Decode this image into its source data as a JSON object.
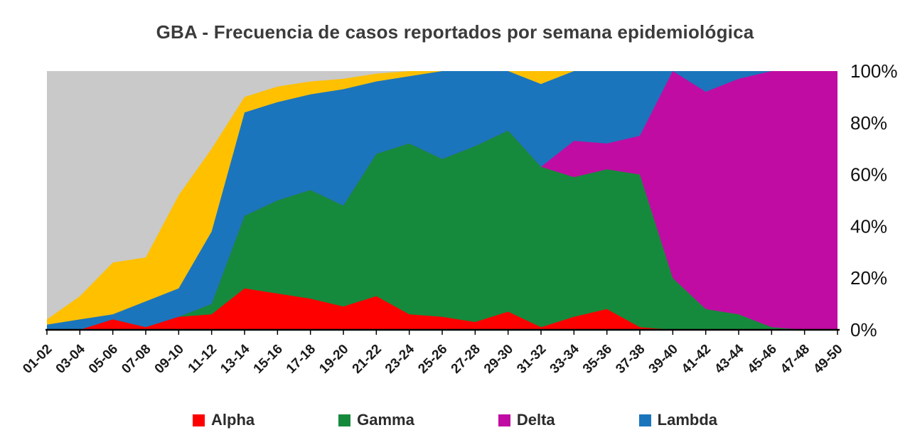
{
  "chart_data": {
    "type": "area",
    "stacked_percent": true,
    "title": "GBA - Frecuencia de casos reportados por semana epidemiológica",
    "categories": [
      "01-02",
      "03-04",
      "05-06",
      "07-08",
      "09-10",
      "11-12",
      "13-14",
      "15-16",
      "17-18",
      "19-20",
      "21-22",
      "23-24",
      "25-26",
      "27-28",
      "29-30",
      "31-32",
      "33-34",
      "35-36",
      "37-38",
      "39-40",
      "41-42",
      "43-44",
      "45-46",
      "47-48",
      "49-50"
    ],
    "series": [
      {
        "name": "Alpha",
        "color": "#ff0000",
        "in_legend": true,
        "values": [
          0,
          0,
          4,
          1,
          5,
          6,
          16,
          14,
          12,
          9,
          13,
          6,
          5,
          3,
          7,
          1,
          5,
          8,
          1,
          0,
          0,
          0,
          0,
          0,
          0
        ]
      },
      {
        "name": "Gamma",
        "color": "#168a3c",
        "in_legend": true,
        "values": [
          0,
          0,
          0,
          0,
          0,
          4,
          28,
          36,
          42,
          39,
          55,
          66,
          61,
          68,
          70,
          62,
          54,
          54,
          59,
          20,
          8,
          6,
          1,
          0,
          0
        ]
      },
      {
        "name": "Delta",
        "color": "#c00ca2",
        "in_legend": true,
        "values": [
          0,
          0,
          0,
          0,
          0,
          0,
          0,
          0,
          0,
          0,
          0,
          0,
          0,
          0,
          0,
          0,
          14,
          10,
          15,
          80,
          84,
          91,
          99,
          100,
          100
        ]
      },
      {
        "name": "Lambda",
        "color": "#1b75bc",
        "in_legend": true,
        "values": [
          2,
          4,
          2,
          10,
          11,
          28,
          40,
          38,
          37,
          45,
          28,
          26,
          34,
          29,
          23,
          32,
          27,
          28,
          25,
          0,
          8,
          3,
          0,
          0,
          0
        ]
      },
      {
        "name": "yellow-unlabeled",
        "color": "#ffc000",
        "in_legend": false,
        "values": [
          2,
          9,
          20,
          17,
          36,
          32,
          6,
          6,
          5,
          4,
          3,
          2,
          0,
          0,
          0,
          5,
          0,
          0,
          0,
          0,
          0,
          0,
          0,
          0,
          0
        ]
      },
      {
        "name": "gray-unlabeled",
        "color": "#c9c9c9",
        "in_legend": false,
        "values": [
          96,
          87,
          74,
          72,
          48,
          30,
          10,
          6,
          4,
          3,
          1,
          0,
          0,
          0,
          0,
          0,
          0,
          0,
          0,
          0,
          0,
          0,
          0,
          0,
          0
        ]
      }
    ],
    "y_ticks": [
      "0%",
      "20%",
      "40%",
      "60%",
      "80%",
      "100%"
    ],
    "ylim": [
      0,
      100
    ],
    "xlabel": "",
    "ylabel": "",
    "grid": false,
    "legend_position": "bottom",
    "legend": [
      "Alpha",
      "Gamma",
      "Delta",
      "Lambda"
    ]
  }
}
